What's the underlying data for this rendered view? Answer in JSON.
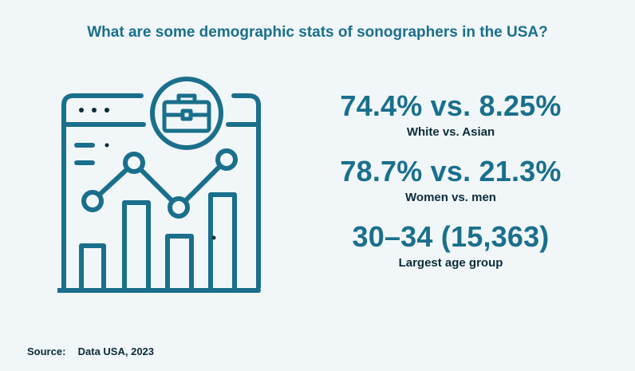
{
  "title": "What are some demographic stats of sonographers in the USA?",
  "stats": [
    {
      "value": "74.4% vs. 8.25%",
      "label": "White vs. Asian"
    },
    {
      "value": "78.7% vs. 21.3%",
      "label": "Women vs. men"
    },
    {
      "value": "30–34 (15,363)",
      "label": "Largest age group"
    }
  ],
  "source": {
    "label": "Source:",
    "text": "Data USA, 2023"
  },
  "colors": {
    "accent": "#1a6f8c",
    "dark": "#0b2b3a",
    "background": "#f1f7f9"
  },
  "icons": [
    "browser-window-icon",
    "briefcase-icon",
    "bar-chart-icon",
    "line-chart-icon"
  ]
}
